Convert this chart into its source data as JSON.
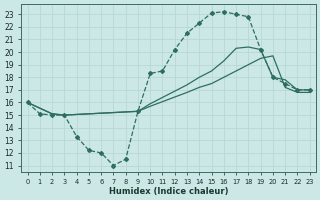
{
  "xlabel": "Humidex (Indice chaleur)",
  "bg_color": "#cce8e6",
  "line_color": "#2e6e62",
  "grid_color": "#b8d8d4",
  "xlim": [
    -0.5,
    23.5
  ],
  "ylim": [
    10.5,
    23.8
  ],
  "yticks": [
    11,
    12,
    13,
    14,
    15,
    16,
    17,
    18,
    19,
    20,
    21,
    22,
    23
  ],
  "xticks": [
    0,
    1,
    2,
    3,
    4,
    5,
    6,
    7,
    8,
    9,
    10,
    11,
    12,
    13,
    14,
    15,
    16,
    17,
    18,
    19,
    20,
    21,
    22,
    23
  ],
  "curve_dashed_x": [
    0,
    1,
    2,
    3,
    4,
    5,
    6,
    7,
    8,
    9,
    10,
    11,
    12,
    13,
    14,
    15,
    16,
    17,
    18,
    19,
    20,
    21,
    22,
    23
  ],
  "curve_dashed_y": [
    16.0,
    15.1,
    15.0,
    15.0,
    13.3,
    12.2,
    12.0,
    11.0,
    11.5,
    15.3,
    18.3,
    18.5,
    20.2,
    21.5,
    22.3,
    23.1,
    23.2,
    23.0,
    22.8,
    20.2,
    18.0,
    17.5,
    17.0,
    17.0
  ],
  "curve_upper_x": [
    0,
    2,
    3,
    9,
    10,
    13,
    14,
    15,
    16,
    17,
    18,
    19,
    20,
    21,
    22,
    23
  ],
  "curve_upper_y": [
    16.0,
    15.1,
    15.0,
    15.3,
    15.9,
    17.4,
    18.0,
    18.5,
    19.3,
    20.3,
    20.4,
    20.2,
    18.0,
    17.8,
    17.0,
    17.0
  ],
  "curve_lower_x": [
    0,
    2,
    3,
    9,
    10,
    13,
    14,
    15,
    16,
    17,
    18,
    19,
    20,
    21,
    22,
    23
  ],
  "curve_lower_y": [
    16.0,
    15.1,
    15.0,
    15.3,
    15.7,
    16.8,
    17.2,
    17.5,
    18.0,
    18.5,
    19.0,
    19.5,
    19.7,
    17.2,
    16.8,
    16.8
  ]
}
